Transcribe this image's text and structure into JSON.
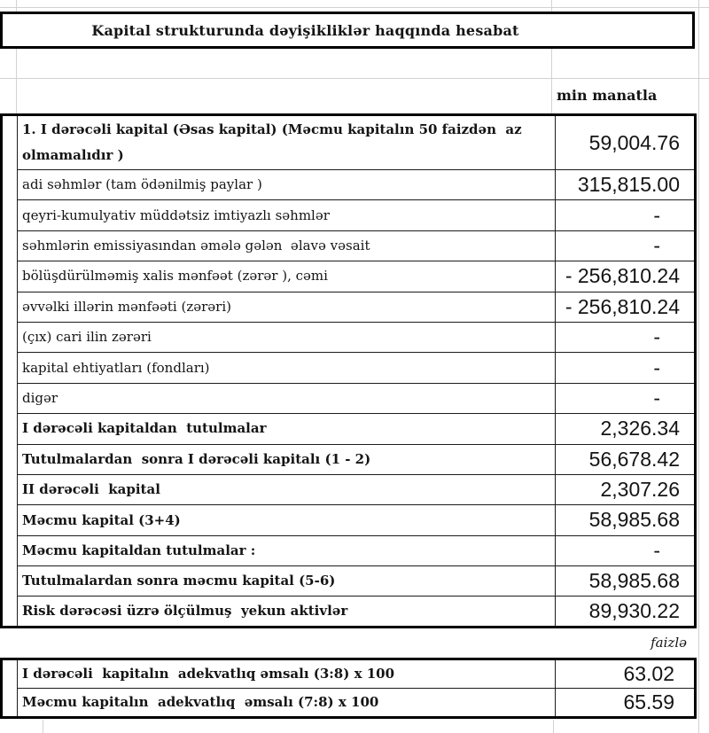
{
  "title": "Kapital strukturunda dəyişikliklər haqqında hesabat",
  "unit_label": "min manatla",
  "percent_label": "faizlə",
  "main_table": {
    "rows": [
      {
        "label": "1. I dərəcəli kapital (Əsas kapital) (Məcmu kapitalın 50 faizdən  az olmamalıdır )",
        "value": "59,004.76",
        "bold": true,
        "tall": true
      },
      {
        "label": "adi səhmlər (tam ödənilmiş paylar )",
        "value": "315,815.00",
        "bold": false
      },
      {
        "label": "qeyri-kumulyativ müddətsiz imtiyazlı səhmlər",
        "value": "-",
        "bold": false
      },
      {
        "label": "səhmlərin emissiyasından əmələ gələn  əlavə vəsait",
        "value": "-",
        "bold": false
      },
      {
        "label": "bölüşdürülməmiş xalis mənfəət (zərər ), cəmi",
        "value": "- 256,810.24",
        "bold": false
      },
      {
        "label": "əvvəlki illərin mənfəəti (zərəri)",
        "value": "- 256,810.24",
        "bold": false
      },
      {
        "label": "(çıx) cari ilin zərəri",
        "value": "-",
        "bold": false
      },
      {
        "label": "kapital ehtiyatları (fondları)",
        "value": "-",
        "bold": false
      },
      {
        "label": "digər",
        "value": "-",
        "bold": false
      },
      {
        "label": "I dərəcəli kapitaldan  tutulmalar",
        "value": "2,326.34",
        "bold": true
      },
      {
        "label": "Tutulmalardan  sonra I dərəcəli kapitalı (1 - 2)",
        "value": "56,678.42",
        "bold": true
      },
      {
        "label": "II dərəcəli  kapital",
        "value": "2,307.26",
        "bold": true
      },
      {
        "label": "Məcmu kapital (3+4)",
        "value": "58,985.68",
        "bold": true
      },
      {
        "label": "Məcmu kapitaldan tutulmalar :",
        "value": "-",
        "bold": true
      },
      {
        "label": "Tutulmalardan sonra məcmu kapital (5-6)",
        "value": "58,985.68",
        "bold": true
      },
      {
        "label": "Risk dərəcəsi üzrə ölçülmuş  yekun aktivlər",
        "value": "89,930.22",
        "bold": true
      }
    ]
  },
  "ratio_table": {
    "rows": [
      {
        "label": "I dərəcəli  kapitalın  adekvatlıq əmsalı (3:8) x 100",
        "value": "63.02",
        "bold": true
      },
      {
        "label": "Məcmu kapitalın  adekvatlıq  əmsalı (7:8) x 100",
        "value": "65.59",
        "bold": true
      }
    ]
  }
}
